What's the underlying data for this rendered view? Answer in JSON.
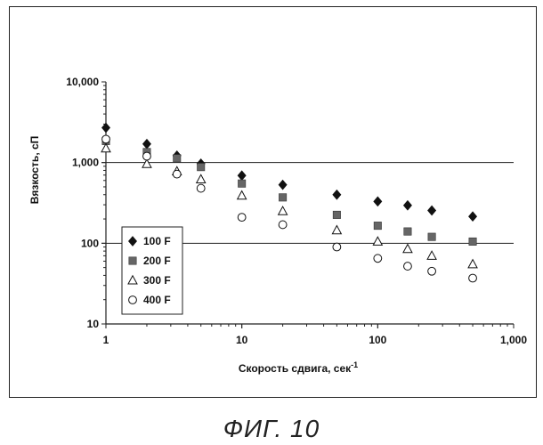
{
  "figure_caption": "ФИГ. 10",
  "chart_data": {
    "type": "scatter",
    "title": "",
    "xlabel": "Скорость сдвига, сек",
    "xlabel_superscript": "-1",
    "ylabel": "Вязкость, сП",
    "x_scale": "log",
    "y_scale": "log",
    "xlim": [
      1,
      1000
    ],
    "ylim": [
      10,
      10000
    ],
    "x_ticks": [
      {
        "value": 1,
        "label": "1"
      },
      {
        "value": 10,
        "label": "10"
      },
      {
        "value": 100,
        "label": "100"
      },
      {
        "value": 1000,
        "label": "1,000"
      }
    ],
    "y_ticks": [
      {
        "value": 10,
        "label": "10"
      },
      {
        "value": 100,
        "label": "100"
      },
      {
        "value": 1000,
        "label": "1,000"
      },
      {
        "value": 10000,
        "label": "10,000"
      }
    ],
    "gridlines_y": [
      100,
      1000
    ],
    "legend_position": "left-bottom",
    "series": [
      {
        "name": "100 F",
        "marker": "diamond-filled",
        "color": "#111111",
        "points": [
          [
            1,
            2700
          ],
          [
            2,
            1700
          ],
          [
            3.33,
            1220
          ],
          [
            5,
            970
          ],
          [
            10,
            690
          ],
          [
            20,
            530
          ],
          [
            50,
            400
          ],
          [
            100,
            330
          ],
          [
            166,
            295
          ],
          [
            250,
            255
          ],
          [
            500,
            215
          ]
        ]
      },
      {
        "name": "200 F",
        "marker": "square-filled",
        "color": "#666666",
        "points": [
          [
            1,
            1850
          ],
          [
            2,
            1350
          ],
          [
            3.33,
            1130
          ],
          [
            5,
            880
          ],
          [
            10,
            550
          ],
          [
            20,
            370
          ],
          [
            50,
            225
          ],
          [
            100,
            165
          ],
          [
            166,
            140
          ],
          [
            250,
            120
          ],
          [
            500,
            105
          ]
        ]
      },
      {
        "name": "300 F",
        "marker": "triangle-open",
        "color": "#111111",
        "points": [
          [
            1,
            1500
          ],
          [
            2,
            960
          ],
          [
            3.33,
            780
          ],
          [
            5,
            620
          ],
          [
            10,
            390
          ],
          [
            20,
            250
          ],
          [
            50,
            145
          ],
          [
            100,
            105
          ],
          [
            166,
            85
          ],
          [
            250,
            70
          ],
          [
            500,
            55
          ]
        ]
      },
      {
        "name": "400 F",
        "marker": "circle-open",
        "color": "#111111",
        "points": [
          [
            1,
            1950
          ],
          [
            2,
            1200
          ],
          [
            3.33,
            720
          ],
          [
            5,
            480
          ],
          [
            10,
            210
          ],
          [
            20,
            170
          ],
          [
            50,
            90
          ],
          [
            100,
            65
          ],
          [
            166,
            52
          ],
          [
            250,
            45
          ],
          [
            500,
            37
          ]
        ]
      }
    ]
  }
}
